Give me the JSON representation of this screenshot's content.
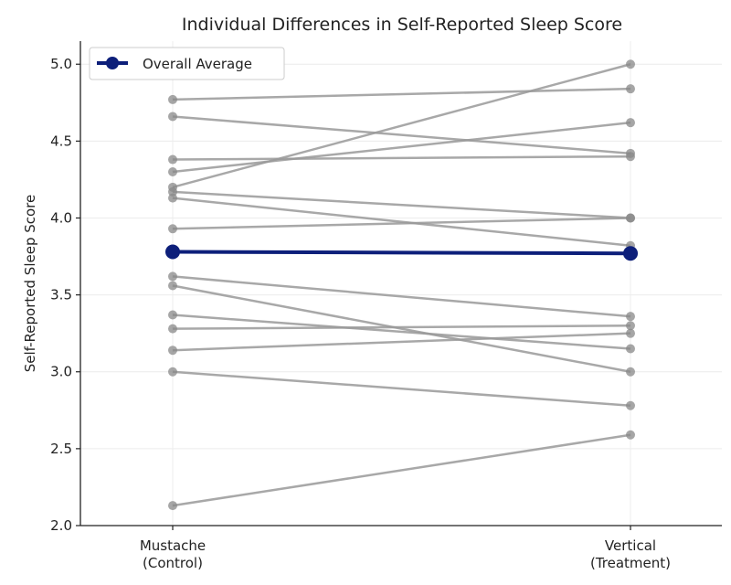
{
  "chart_data": {
    "type": "line",
    "title": "Individual Differences in Self-Reported Sleep Score",
    "xlabel": "",
    "ylabel": "Self-Reported Sleep Score",
    "categories": [
      {
        "line1": "Mustache",
        "line2": "(Control)"
      },
      {
        "line1": "Vertical",
        "line2": "(Treatment)"
      }
    ],
    "ylim": [
      2.0,
      5.15
    ],
    "yticks": [
      2.0,
      2.5,
      3.0,
      3.5,
      4.0,
      4.5,
      5.0
    ],
    "ytick_labels": [
      "2.0",
      "2.5",
      "3.0",
      "3.5",
      "4.0",
      "4.5",
      "5.0"
    ],
    "grid": true,
    "legend": {
      "position": "top-left",
      "entries": [
        "Overall Average"
      ]
    },
    "colors": {
      "individual": "#999999",
      "average": "#0d1f7a",
      "axis": "#222222",
      "grid": "#ececec"
    },
    "individuals": [
      [
        4.77,
        4.84
      ],
      [
        4.66,
        4.42
      ],
      [
        4.38,
        4.4
      ],
      [
        4.3,
        4.62
      ],
      [
        4.2,
        5.0
      ],
      [
        4.17,
        4.0
      ],
      [
        4.13,
        3.82
      ],
      [
        3.93,
        4.0
      ],
      [
        3.62,
        3.36
      ],
      [
        3.56,
        3.0
      ],
      [
        3.37,
        3.15
      ],
      [
        3.28,
        3.3
      ],
      [
        3.14,
        3.25
      ],
      [
        3.0,
        2.78
      ],
      [
        2.13,
        2.59
      ]
    ],
    "series": [
      {
        "name": "Overall Average",
        "values": [
          3.78,
          3.77
        ]
      }
    ]
  }
}
